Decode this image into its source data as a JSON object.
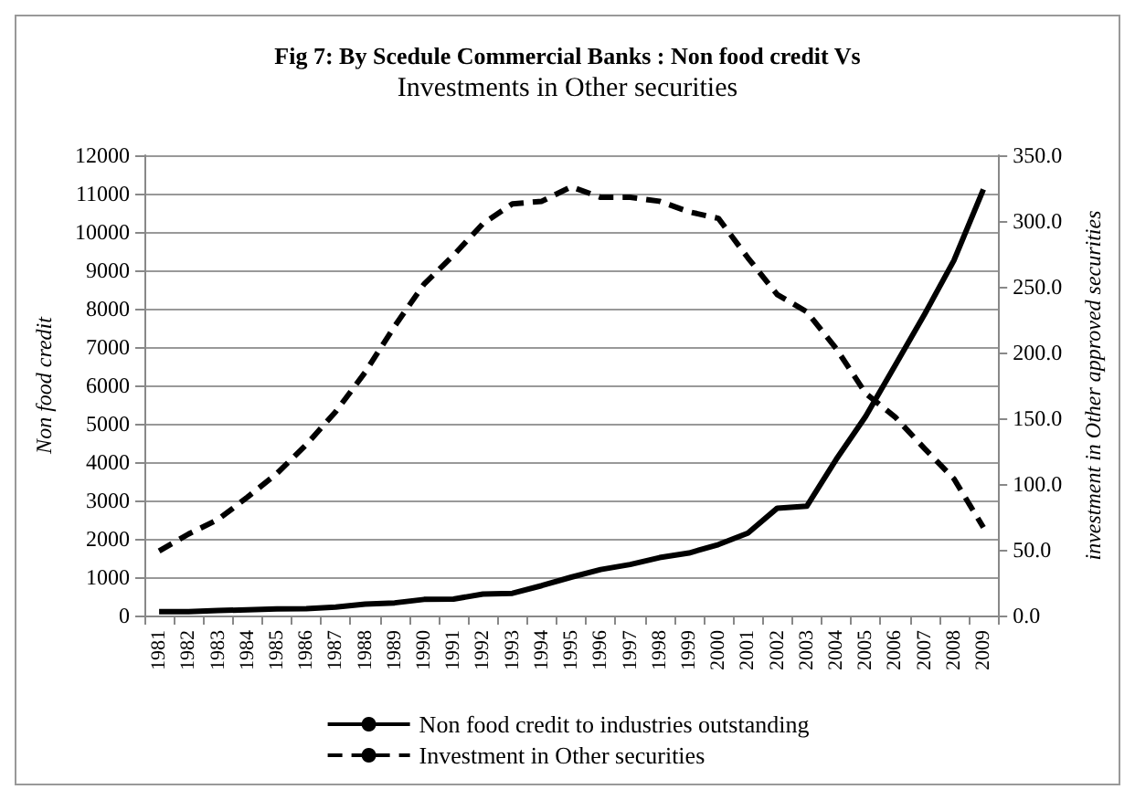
{
  "chart_data": {
    "type": "line",
    "title": "Fig 7: By Scedule Commercial Banks : Non food credit Vs",
    "subtitle": "Investments in Other securities",
    "ylabel": "Non food credit",
    "y2label": "investment in Other approved securities",
    "categories": [
      "1981",
      "1982",
      "1983",
      "1984",
      "1985",
      "1986",
      "1987",
      "1988",
      "1989",
      "1990",
      "1991",
      "1992",
      "1993",
      "1994",
      "1995",
      "1996",
      "1997",
      "1998",
      "1999",
      "2000",
      "2001",
      "2002",
      "2003",
      "2004",
      "2005",
      "2006",
      "2007",
      "2008",
      "2009"
    ],
    "series": [
      {
        "name": "Non food credit to industries outstanding",
        "color": "#000000",
        "line_style": "solid",
        "values": [
          100,
          100,
          130,
          150,
          170,
          180,
          220,
          300,
          330,
          420,
          430,
          560,
          580,
          780,
          1000,
          1200,
          1330,
          1510,
          1630,
          1850,
          2150,
          2800,
          2850,
          4070,
          5190,
          6520,
          7850,
          9260,
          11110
        ]
      },
      {
        "name": "Investment in Other securities",
        "color": "#000000",
        "line_style": "dashed",
        "axis": "y2",
        "values": [
          49,
          62,
          73,
          90,
          108,
          130,
          155,
          185,
          220,
          252,
          274,
          298,
          313,
          315,
          326,
          318,
          318,
          315,
          307,
          302,
          272,
          244,
          231,
          203,
          169,
          151,
          127,
          104,
          67
        ]
      }
    ],
    "ylim": [
      0,
      12000
    ],
    "yticks": [
      0,
      1000,
      2000,
      3000,
      4000,
      5000,
      6000,
      7000,
      8000,
      9000,
      10000,
      11000,
      12000
    ],
    "y2lim": [
      0,
      350
    ],
    "y2ticks": [
      {
        "value": 0,
        "label": "0.0"
      },
      {
        "value": 50,
        "label": "50.0"
      },
      {
        "value": 100,
        "label": "100.0"
      },
      {
        "value": 150,
        "label": "150.0"
      },
      {
        "value": 200,
        "label": "200.0"
      },
      {
        "value": 250,
        "label": "250.0"
      },
      {
        "value": 300,
        "label": "300.0"
      },
      {
        "value": 350,
        "label": "350.0"
      }
    ],
    "grid": "y",
    "legend": "bottom",
    "marker": "none"
  }
}
